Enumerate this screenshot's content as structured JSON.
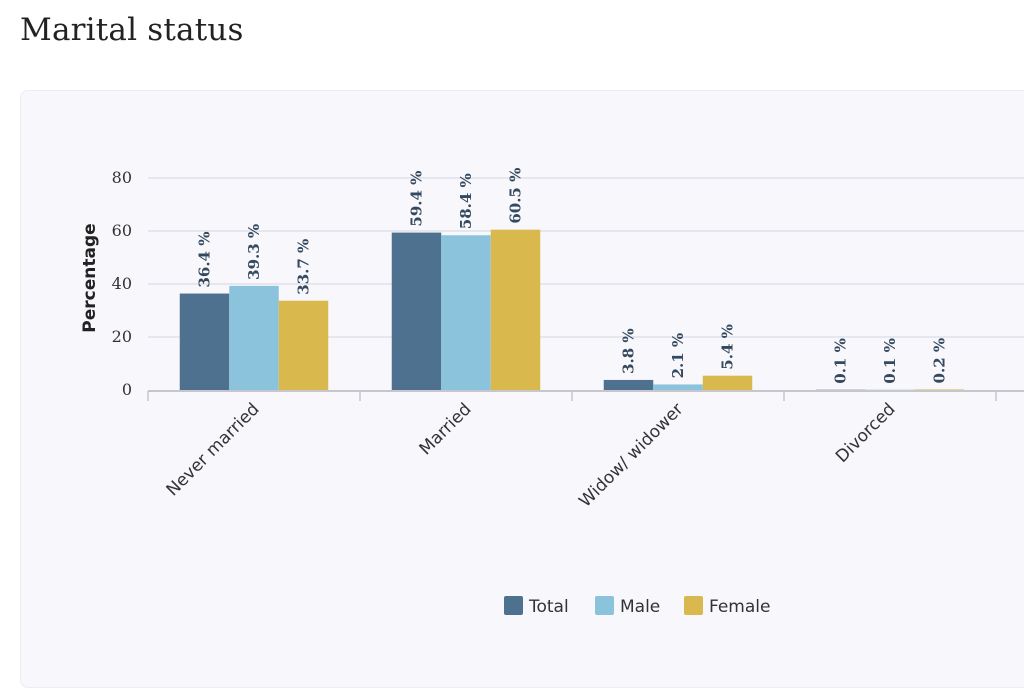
{
  "page": {
    "title": "Marital status"
  },
  "colors": {
    "Total": "#4e7190",
    "Male": "#8bc3dc",
    "Female": "#d9b94d",
    "grid": "#d6d6df",
    "axis": "#c6c6cc",
    "card": "#f7f7fc"
  },
  "chart_data": {
    "type": "bar",
    "title": "",
    "xlabel": "",
    "ylabel": "Percentage",
    "ylim": [
      0,
      80
    ],
    "yticks": [
      0,
      20,
      40,
      60,
      80
    ],
    "grid": true,
    "legend_position": "bottom",
    "categories": [
      "Never married",
      "Married",
      "Widow/ widower",
      "Divorced"
    ],
    "series": [
      {
        "name": "Total",
        "values": [
          36.4,
          59.4,
          3.8,
          0.1
        ]
      },
      {
        "name": "Male",
        "values": [
          39.3,
          58.4,
          2.1,
          0.1
        ]
      },
      {
        "name": "Female",
        "values": [
          33.7,
          60.5,
          5.4,
          0.2
        ]
      }
    ],
    "value_suffix": " %"
  }
}
